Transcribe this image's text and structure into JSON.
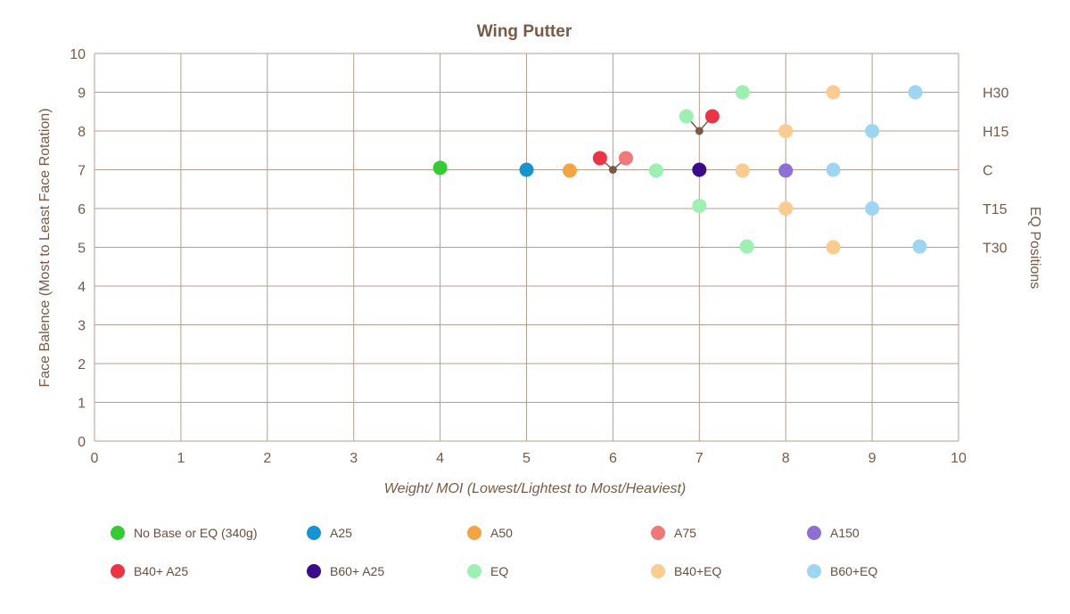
{
  "chart_data": {
    "type": "scatter",
    "title": "Wing Putter",
    "xlabel": "Weight/ MOI (Lowest/Lightest to Most/Heaviest)",
    "ylabel": "Face Balence (Most  to  Least Face Rotation)",
    "right_label": "EQ Positions",
    "xlim": [
      0,
      10
    ],
    "ylim": [
      0,
      10
    ],
    "x_ticks": [
      "0",
      "1",
      "2",
      "3",
      "4",
      "5",
      "6",
      "7",
      "8",
      "9",
      "10"
    ],
    "y_ticks": [
      "0",
      "1",
      "2",
      "3",
      "4",
      "5",
      "6",
      "7",
      "8",
      "9",
      "10"
    ],
    "grid": true,
    "eq_positions": [
      {
        "label": "H30",
        "y": 9
      },
      {
        "label": "H15",
        "y": 8
      },
      {
        "label": "C",
        "y": 7
      },
      {
        "label": "T15",
        "y": 6
      },
      {
        "label": "T30",
        "y": 5
      }
    ],
    "series": [
      {
        "name": "No Base or EQ (340g)",
        "color": "#33cc33",
        "points": [
          [
            4.0,
            7.05
          ]
        ]
      },
      {
        "name": "A25",
        "color": "#1494d0",
        "points": [
          [
            5.0,
            7.0
          ]
        ]
      },
      {
        "name": "A50",
        "color": "#f5a442",
        "points": [
          [
            5.5,
            6.98
          ]
        ]
      },
      {
        "name": "A75",
        "color": "#f07878",
        "points": [
          [
            6.15,
            7.3
          ]
        ]
      },
      {
        "name": "A150",
        "color": "#8c70d8",
        "points": [
          [
            8.0,
            6.98
          ]
        ]
      },
      {
        "name": "B40+ A25",
        "color": "#ee3344",
        "points": [
          [
            5.85,
            7.3
          ],
          [
            7.15,
            8.38
          ]
        ]
      },
      {
        "name": "B60+ A25",
        "color": "#3a0c8c",
        "points": [
          [
            7.0,
            7.0
          ]
        ]
      },
      {
        "name": "EQ",
        "color": "#9cf0b0",
        "points": [
          [
            6.85,
            8.38
          ],
          [
            7.5,
            9.0
          ],
          [
            6.5,
            6.98
          ],
          [
            7.0,
            6.07
          ],
          [
            7.55,
            5.02
          ]
        ]
      },
      {
        "name": "B40+EQ",
        "color": "#fbcb8f",
        "points": [
          [
            8.55,
            9.0
          ],
          [
            8.0,
            8.0
          ],
          [
            7.5,
            6.98
          ],
          [
            8.0,
            6.0
          ],
          [
            8.55,
            5.0
          ]
        ]
      },
      {
        "name": "B60+EQ",
        "color": "#9dd6f2",
        "points": [
          [
            9.5,
            9.0
          ],
          [
            9.0,
            8.0
          ],
          [
            8.55,
            7.0
          ],
          [
            9.0,
            6.0
          ],
          [
            9.55,
            5.02
          ]
        ]
      }
    ],
    "connectors": [
      {
        "node": [
          6.0,
          7.0
        ],
        "to": [
          [
            5.85,
            7.3
          ],
          [
            6.15,
            7.3
          ]
        ]
      },
      {
        "node": [
          7.0,
          8.0
        ],
        "to": [
          [
            6.85,
            8.38
          ],
          [
            7.15,
            8.38
          ]
        ]
      }
    ],
    "connector_color": "#7a5a44",
    "legend_rows": [
      [
        "No Base or EQ (340g)",
        "A25",
        "A50",
        "A75",
        "A150"
      ],
      [
        "B40+ A25",
        "B60+ A25",
        "EQ",
        "B40+EQ",
        "B60+EQ"
      ]
    ]
  }
}
